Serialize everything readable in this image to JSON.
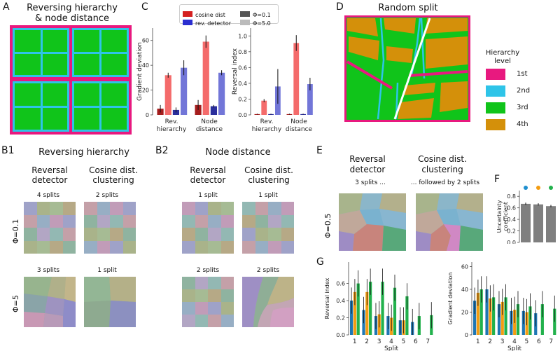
{
  "panelA": {
    "letter": "A",
    "title_line1": "Reversing hierarchy",
    "title_line2": "& node distance"
  },
  "panelC": {
    "letter": "C",
    "legend": {
      "cosine": "cosine dist",
      "revdet": "rev. detector",
      "phi01": "Φ=0.1",
      "phi5": "Φ=5.0"
    }
  },
  "panelD": {
    "letter": "D",
    "title": "Random split",
    "legend_title_1": "Hierarchy",
    "legend_title_2": "level",
    "levels": [
      "1st",
      "2nd",
      "3rd",
      "4th"
    ]
  },
  "colors": {
    "lvl1": "#e8197f",
    "lvl2": "#2ec4e8",
    "lvl3": "#10c41a",
    "lvl4": "#d4900a",
    "cos_dark": "#a51d1d",
    "cos_light": "#f46b6b",
    "rev_dark": "#2a2e9c",
    "rev_light": "#7276d8"
  },
  "panelB1": {
    "letter": "B1",
    "title": "Reversing hierarchy",
    "col1a": "Reversal",
    "col1b": "detector",
    "col2a": "Cosine dist.",
    "col2b": "clustering",
    "r1c1": "4 splits",
    "r1c2": "2 splits",
    "r2c1": "3 splits",
    "r2c2": "1 split"
  },
  "panelB2": {
    "letter": "B2",
    "title": "Node distance",
    "col1a": "Reversal",
    "col1b": "detector",
    "col2a": "Cosine dist.",
    "col2b": "clustering",
    "r1c1": "1 split",
    "r1c2": "1 split",
    "r2c1": "2 splits",
    "r2c2": "2 splits"
  },
  "rowlabels": {
    "phi01": "Φ=0.1",
    "phi5": "Φ=5"
  },
  "panelE": {
    "letter": "E",
    "col1a": "Reversal",
    "col1b": "detector",
    "col2a": "Cosine dist.",
    "col2b": "clustering",
    "cap1": "3 splits ...",
    "cap2": "... followed by 2 splits",
    "phi": "Φ=0.5"
  },
  "panelF": {
    "letter": "F"
  },
  "panelG": {
    "letter": "G"
  },
  "chart_data": [
    {
      "id": "C-left",
      "type": "bar",
      "ylabel": "Gradient deviation",
      "ylim": [
        0,
        70
      ],
      "yticks": [
        0,
        20,
        40,
        60
      ],
      "categories": [
        "Rev.\nhierarchy",
        "Node\ndistance"
      ],
      "series": [
        {
          "name": "cosine dist Φ=5.0",
          "values": [
            5,
            8
          ],
          "err": [
            3,
            4
          ]
        },
        {
          "name": "cosine dist Φ=0.1",
          "values": [
            32,
            59
          ],
          "err": [
            2,
            5
          ]
        },
        {
          "name": "rev. detector Φ=5.0",
          "values": [
            4,
            7
          ],
          "err": [
            2,
            1
          ]
        },
        {
          "name": "rev. detector Φ=0.1",
          "values": [
            38,
            34
          ],
          "err": [
            6,
            2
          ]
        }
      ]
    },
    {
      "id": "C-right",
      "type": "bar",
      "ylabel": "Reversal index",
      "ylim": [
        0,
        1.1
      ],
      "yticks": [
        0.0,
        0.2,
        0.4,
        0.6,
        0.8,
        1.0
      ],
      "categories": [
        "Rev.\nhierarchy",
        "Node\ndistance"
      ],
      "series": [
        {
          "name": "cosine dist Φ=5.0",
          "values": [
            0.01,
            0.01
          ],
          "err": [
            0.005,
            0.005
          ]
        },
        {
          "name": "cosine dist Φ=0.1",
          "values": [
            0.18,
            0.91
          ],
          "err": [
            0.02,
            0.1
          ]
        },
        {
          "name": "rev. detector Φ=5.0",
          "values": [
            0.01,
            0.01
          ],
          "err": [
            0.005,
            0.005
          ]
        },
        {
          "name": "rev. detector Φ=0.1",
          "values": [
            0.36,
            0.39
          ],
          "err": [
            0.22,
            0.08
          ]
        }
      ]
    },
    {
      "id": "F",
      "type": "bar",
      "ylabel": "Uncertainty\ncoefficient",
      "ylim": [
        0,
        0.9
      ],
      "yticks": [
        0.0,
        0.2,
        0.4,
        0.6,
        0.8
      ],
      "categories": [
        "blue",
        "orange",
        "green"
      ],
      "values": [
        0.67,
        0.66,
        0.63
      ]
    },
    {
      "id": "G-left",
      "type": "bar",
      "ylabel": "Reversal index",
      "xlabel": "Split",
      "ylim": [
        0,
        0.85
      ],
      "yticks": [
        0.0,
        0.2,
        0.4,
        0.6
      ],
      "categories": [
        "1",
        "2",
        "3",
        "4",
        "5",
        "6",
        "7"
      ],
      "series": [
        {
          "name": "blue",
          "values": [
            0.4,
            0.29,
            0.22,
            0.22,
            0.17,
            0.15,
            null
          ]
        },
        {
          "name": "orange",
          "values": [
            0.5,
            0.5,
            0.24,
            0.2,
            0.17,
            null,
            null
          ]
        },
        {
          "name": "green",
          "values": [
            0.6,
            0.62,
            0.62,
            0.55,
            0.45,
            0.22,
            0.23
          ]
        }
      ]
    },
    {
      "id": "G-right",
      "type": "bar",
      "ylabel": "Gradient deviation",
      "xlabel": "Split",
      "ylim": [
        0,
        64
      ],
      "yticks": [
        0,
        20,
        40,
        60
      ],
      "categories": [
        "1",
        "2",
        "3",
        "4",
        "5",
        "6",
        "7"
      ],
      "series": [
        {
          "name": "blue",
          "values": [
            30,
            40,
            27,
            21,
            21,
            19,
            null
          ]
        },
        {
          "name": "orange",
          "values": [
            37,
            32,
            29,
            22,
            20,
            null,
            null
          ]
        },
        {
          "name": "green",
          "values": [
            40,
            33,
            33,
            27,
            25,
            27,
            23
          ]
        }
      ]
    }
  ]
}
